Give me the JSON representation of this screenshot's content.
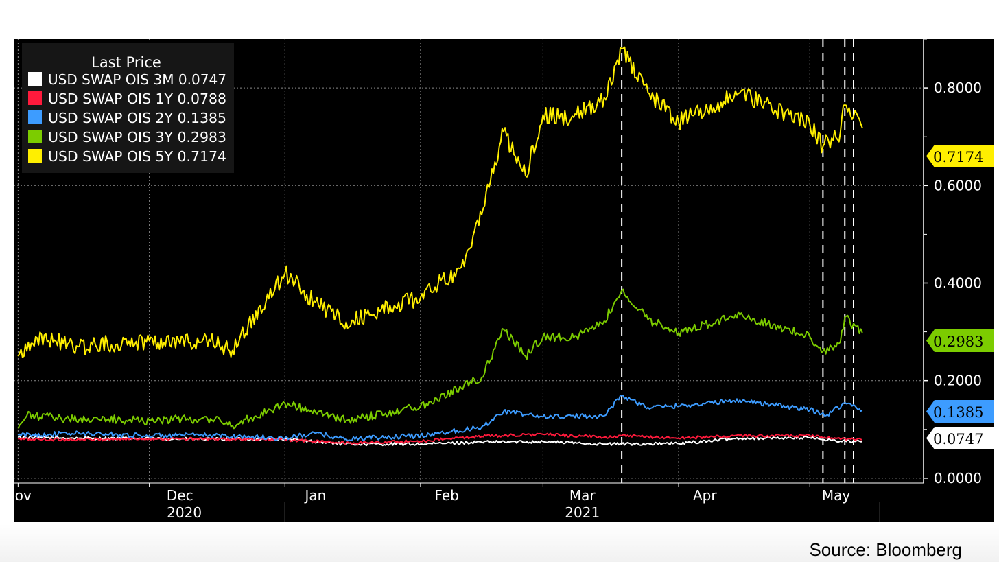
{
  "chart_data": {
    "type": "line",
    "title": "",
    "xlabel": "",
    "ylabel": "",
    "ylim": [
      -0.01,
      0.9
    ],
    "yticks": [
      0,
      0.2,
      0.4,
      0.6,
      0.8
    ],
    "ytick_labels": [
      "0.0000",
      "0.2000",
      "0.4000",
      "0.6000",
      "0.8000"
    ],
    "x_month_labels": [
      {
        "date": "2020-11-01",
        "label": "Nov"
      },
      {
        "date": "2020-12-08",
        "label": "Dec"
      },
      {
        "date": "2021-01-08",
        "label": "Jan"
      },
      {
        "date": "2021-02-07",
        "label": "Feb"
      },
      {
        "date": "2021-03-10",
        "label": "Mar"
      },
      {
        "date": "2021-04-07",
        "label": "Apr"
      },
      {
        "date": "2021-05-07",
        "label": "May"
      }
    ],
    "x_year_labels": [
      {
        "date": "2020-12-09",
        "label": "2020"
      },
      {
        "date": "2021-03-10",
        "label": "2021"
      }
    ],
    "x_range": [
      "2020-10-31",
      "2021-05-27"
    ],
    "grid": true,
    "background": "#000000",
    "legend": {
      "title": "Last Price",
      "placement": "top-left"
    },
    "event_lines": [
      "2021-03-19",
      "2021-05-04",
      "2021-05-09",
      "2021-05-11"
    ],
    "series": [
      {
        "name": "USD SWAP OIS 3M",
        "last": "0.0747",
        "color": "#ffffff",
        "dates": [
          "2020-11-01",
          "2020-11-15",
          "2020-12-01",
          "2020-12-15",
          "2021-01-01",
          "2021-01-15",
          "2021-02-01",
          "2021-02-15",
          "2021-03-01",
          "2021-03-15",
          "2021-04-01",
          "2021-04-15",
          "2021-05-01",
          "2021-05-08",
          "2021-05-13"
        ],
        "values": [
          0.084,
          0.082,
          0.081,
          0.08,
          0.08,
          0.07,
          0.07,
          0.074,
          0.075,
          0.07,
          0.071,
          0.082,
          0.083,
          0.076,
          0.075
        ]
      },
      {
        "name": "USD SWAP OIS 1Y",
        "last": "0.0788",
        "color": "#ff1a3c",
        "dates": [
          "2020-11-01",
          "2020-11-15",
          "2020-12-01",
          "2020-12-15",
          "2021-01-01",
          "2021-01-15",
          "2021-02-01",
          "2021-02-15",
          "2021-03-01",
          "2021-03-15",
          "2021-03-19",
          "2021-04-01",
          "2021-04-15",
          "2021-05-01",
          "2021-05-08",
          "2021-05-13"
        ],
        "values": [
          0.08,
          0.079,
          0.081,
          0.08,
          0.079,
          0.072,
          0.076,
          0.086,
          0.09,
          0.084,
          0.087,
          0.082,
          0.087,
          0.087,
          0.08,
          0.079
        ]
      },
      {
        "name": "USD SWAP OIS 2Y",
        "last": "0.1385",
        "color": "#3d9cff",
        "dates": [
          "2020-11-01",
          "2020-11-15",
          "2020-12-01",
          "2020-12-15",
          "2021-01-01",
          "2021-01-08",
          "2021-01-15",
          "2021-02-01",
          "2021-02-15",
          "2021-02-20",
          "2021-03-01",
          "2021-03-15",
          "2021-03-19",
          "2021-03-25",
          "2021-04-01",
          "2021-04-15",
          "2021-05-01",
          "2021-05-05",
          "2021-05-09",
          "2021-05-13"
        ],
        "values": [
          0.088,
          0.092,
          0.087,
          0.088,
          0.082,
          0.092,
          0.08,
          0.087,
          0.105,
          0.137,
          0.126,
          0.128,
          0.17,
          0.145,
          0.148,
          0.16,
          0.14,
          0.13,
          0.155,
          0.139
        ]
      },
      {
        "name": "USD SWAP OIS 3Y",
        "last": "0.2983",
        "color": "#7ccc00",
        "dates": [
          "2020-11-01",
          "2020-11-03",
          "2020-11-15",
          "2020-12-01",
          "2020-12-15",
          "2020-12-20",
          "2021-01-01",
          "2021-01-08",
          "2021-01-15",
          "2021-02-01",
          "2021-02-15",
          "2021-02-20",
          "2021-02-25",
          "2021-03-01",
          "2021-03-08",
          "2021-03-15",
          "2021-03-19",
          "2021-03-25",
          "2021-04-01",
          "2021-04-15",
          "2021-05-01",
          "2021-05-04",
          "2021-05-08",
          "2021-05-09",
          "2021-05-13"
        ],
        "values": [
          0.102,
          0.128,
          0.121,
          0.119,
          0.122,
          0.108,
          0.153,
          0.135,
          0.118,
          0.148,
          0.207,
          0.305,
          0.25,
          0.29,
          0.288,
          0.322,
          0.385,
          0.325,
          0.298,
          0.335,
          0.29,
          0.26,
          0.28,
          0.33,
          0.298
        ]
      },
      {
        "name": "USD SWAP OIS 5Y",
        "last": "0.7174",
        "color": "#ffef00",
        "dates": [
          "2020-11-01",
          "2020-11-05",
          "2020-11-15",
          "2020-12-01",
          "2020-12-15",
          "2020-12-20",
          "2021-01-01",
          "2021-01-08",
          "2021-01-15",
          "2021-02-01",
          "2021-02-10",
          "2021-02-15",
          "2021-02-20",
          "2021-02-25",
          "2021-03-01",
          "2021-03-08",
          "2021-03-15",
          "2021-03-19",
          "2021-03-25",
          "2021-04-01",
          "2021-04-15",
          "2021-05-01",
          "2021-05-04",
          "2021-05-08",
          "2021-05-09",
          "2021-05-13"
        ],
        "values": [
          0.25,
          0.29,
          0.27,
          0.282,
          0.28,
          0.262,
          0.42,
          0.36,
          0.32,
          0.37,
          0.43,
          0.54,
          0.71,
          0.62,
          0.745,
          0.74,
          0.78,
          0.88,
          0.79,
          0.73,
          0.79,
          0.725,
          0.68,
          0.71,
          0.765,
          0.718
        ]
      }
    ]
  },
  "footer": {
    "source": "Source: Bloomberg"
  }
}
